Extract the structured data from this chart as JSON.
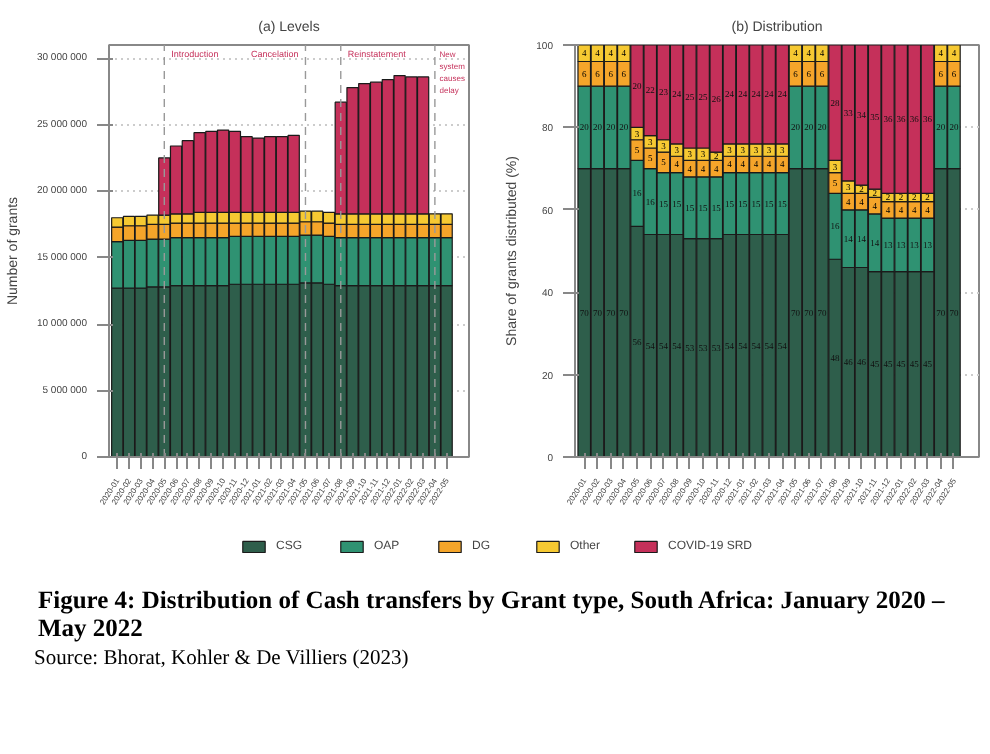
{
  "chart_data": [
    {
      "type": "bar",
      "stacked": true,
      "title": "(a) Levels",
      "ylabel": "Number of grants",
      "categories": [
        "2020-01",
        "2020-02",
        "2020-03",
        "2020-04",
        "2020-05",
        "2020-06",
        "2020-07",
        "2020-08",
        "2020-09",
        "2020-10",
        "2020-11",
        "2020-12",
        "2021-01",
        "2021-02",
        "2021-03",
        "2021-04",
        "2021-05",
        "2021-06",
        "2021-07",
        "2021-08",
        "2021-09",
        "2021-10",
        "2021-11",
        "2021-12",
        "2022-01",
        "2022-02",
        "2022-03",
        "2022-04",
        "2022-05"
      ],
      "series": [
        {
          "name": "CSG",
          "color": "#2e5e4b",
          "values": [
            12700000,
            12700000,
            12700000,
            12800000,
            12800000,
            12900000,
            12900000,
            12900000,
            12900000,
            12900000,
            13000000,
            13000000,
            13000000,
            13000000,
            13000000,
            13000000,
            13100000,
            13100000,
            13000000,
            12900000,
            12900000,
            12900000,
            12900000,
            12900000,
            12900000,
            12900000,
            12900000,
            12900000,
            12900000
          ]
        },
        {
          "name": "OAP",
          "color": "#2f9272",
          "values": [
            3500000,
            3600000,
            3600000,
            3600000,
            3600000,
            3600000,
            3600000,
            3600000,
            3600000,
            3600000,
            3600000,
            3600000,
            3600000,
            3600000,
            3600000,
            3600000,
            3600000,
            3600000,
            3600000,
            3600000,
            3600000,
            3600000,
            3600000,
            3600000,
            3600000,
            3600000,
            3600000,
            3600000,
            3600000
          ]
        },
        {
          "name": "DG",
          "color": "#f5a52a",
          "values": [
            1100000,
            1100000,
            1100000,
            1100000,
            1100000,
            1100000,
            1100000,
            1100000,
            1100000,
            1100000,
            1000000,
            1000000,
            1000000,
            1000000,
            1000000,
            1000000,
            1000000,
            1000000,
            1000000,
            1000000,
            1000000,
            1000000,
            1000000,
            1000000,
            1000000,
            1000000,
            1000000,
            1000000,
            1000000
          ]
        },
        {
          "name": "Other",
          "color": "#f6c932",
          "values": [
            700000,
            700000,
            700000,
            700000,
            700000,
            700000,
            700000,
            800000,
            800000,
            800000,
            800000,
            800000,
            800000,
            800000,
            800000,
            800000,
            800000,
            800000,
            800000,
            800000,
            800000,
            800000,
            800000,
            800000,
            800000,
            800000,
            800000,
            800000,
            800000
          ]
        },
        {
          "name": "COVID-19 SRD",
          "color": "#c5305a",
          "values": [
            null,
            null,
            null,
            null,
            4300000,
            5100000,
            5500000,
            6000000,
            6100000,
            6200000,
            6100000,
            5700000,
            5600000,
            5700000,
            5700000,
            5800000,
            null,
            null,
            null,
            8400000,
            9500000,
            9800000,
            9900000,
            10100000,
            10400000,
            10300000,
            10300000,
            null,
            null
          ]
        }
      ],
      "ylim": [
        0,
        31000000
      ],
      "yticks": [
        0,
        {
          "value": 5000000,
          "label": "5 000 000"
        },
        {
          "value": 10000000,
          "label": "10 000 000"
        },
        {
          "value": 15000000,
          "label": "15 000 000"
        },
        {
          "value": 20000000,
          "label": "20 000 000"
        },
        {
          "value": 25000000,
          "label": "25 000 000"
        },
        {
          "value": 30000000,
          "label": "30 000 000"
        }
      ],
      "grid": "y",
      "legend": "bottom",
      "ref_lines": [
        {
          "axis": "x",
          "value": "2020-05",
          "label": "Introduction",
          "line_style": "dashed"
        },
        {
          "axis": "x",
          "value": "2021-05",
          "label": "Cancelation",
          "line_style": "dashed"
        },
        {
          "axis": "x",
          "value": "2021-08",
          "label": "Reinstatement",
          "line_style": "dashed"
        },
        {
          "axis": "x",
          "value": "2022-04",
          "label": "New system causes delay",
          "line_style": "dashed"
        }
      ]
    },
    {
      "type": "bar",
      "stacked": true,
      "title": "(b) Distribution",
      "ylabel": "Share of grants distributed (%)",
      "categories": [
        "2020-01",
        "2020-02",
        "2020-03",
        "2020-04",
        "2020-05",
        "2020-06",
        "2020-07",
        "2020-08",
        "2020-09",
        "2020-10",
        "2020-11",
        "2020-12",
        "2021-01",
        "2021-02",
        "2021-03",
        "2021-04",
        "2021-05",
        "2021-06",
        "2021-07",
        "2021-08",
        "2021-09",
        "2021-10",
        "2021-11",
        "2021-12",
        "2022-01",
        "2022-02",
        "2022-03",
        "2022-04",
        "2022-05"
      ],
      "series": [
        {
          "color": "#2e5e4b",
          "values": [
            70,
            70,
            70,
            70,
            56,
            54,
            54,
            54,
            53,
            53,
            53,
            54,
            54,
            54,
            54,
            54,
            70,
            70,
            70,
            48,
            46,
            46,
            45,
            45,
            45,
            45,
            45,
            70,
            70
          ]
        },
        {
          "color": "#2f9272",
          "values": [
            20,
            20,
            20,
            20,
            16,
            16,
            15,
            15,
            15,
            15,
            15,
            15,
            15,
            15,
            15,
            15,
            20,
            20,
            20,
            16,
            14,
            14,
            14,
            13,
            13,
            13,
            13,
            20,
            20
          ]
        },
        {
          "color": "#f5a52a",
          "values": [
            6,
            6,
            6,
            6,
            5,
            5,
            5,
            4,
            4,
            4,
            4,
            4,
            4,
            4,
            4,
            4,
            6,
            6,
            6,
            5,
            4,
            4,
            4,
            4,
            4,
            4,
            4,
            6,
            6
          ]
        },
        {
          "color": "#f6c932",
          "values": [
            4,
            4,
            4,
            4,
            3,
            3,
            3,
            3,
            3,
            3,
            2,
            3,
            3,
            3,
            3,
            3,
            4,
            4,
            4,
            3,
            3,
            2,
            2,
            2,
            2,
            2,
            2,
            4,
            4
          ]
        },
        {
          "color": "#c5305a",
          "values": [
            null,
            null,
            null,
            null,
            20,
            22,
            23,
            24,
            25,
            25,
            26,
            24,
            24,
            24,
            24,
            24,
            null,
            null,
            null,
            28,
            33,
            34,
            35,
            36,
            36,
            36,
            36,
            null,
            null
          ]
        }
      ],
      "ylim": [
        0,
        100
      ],
      "yticks": [
        0,
        20,
        40,
        60,
        80,
        100
      ],
      "grid": "y",
      "data_labels": true,
      "annotations": [
        "Figure 4:  Distribution of Cash transfers by Grant type, South Africa: January 2020 – May 2022",
        "Source:  Bhorat, Kohler & De Villiers (2023)"
      ]
    }
  ]
}
